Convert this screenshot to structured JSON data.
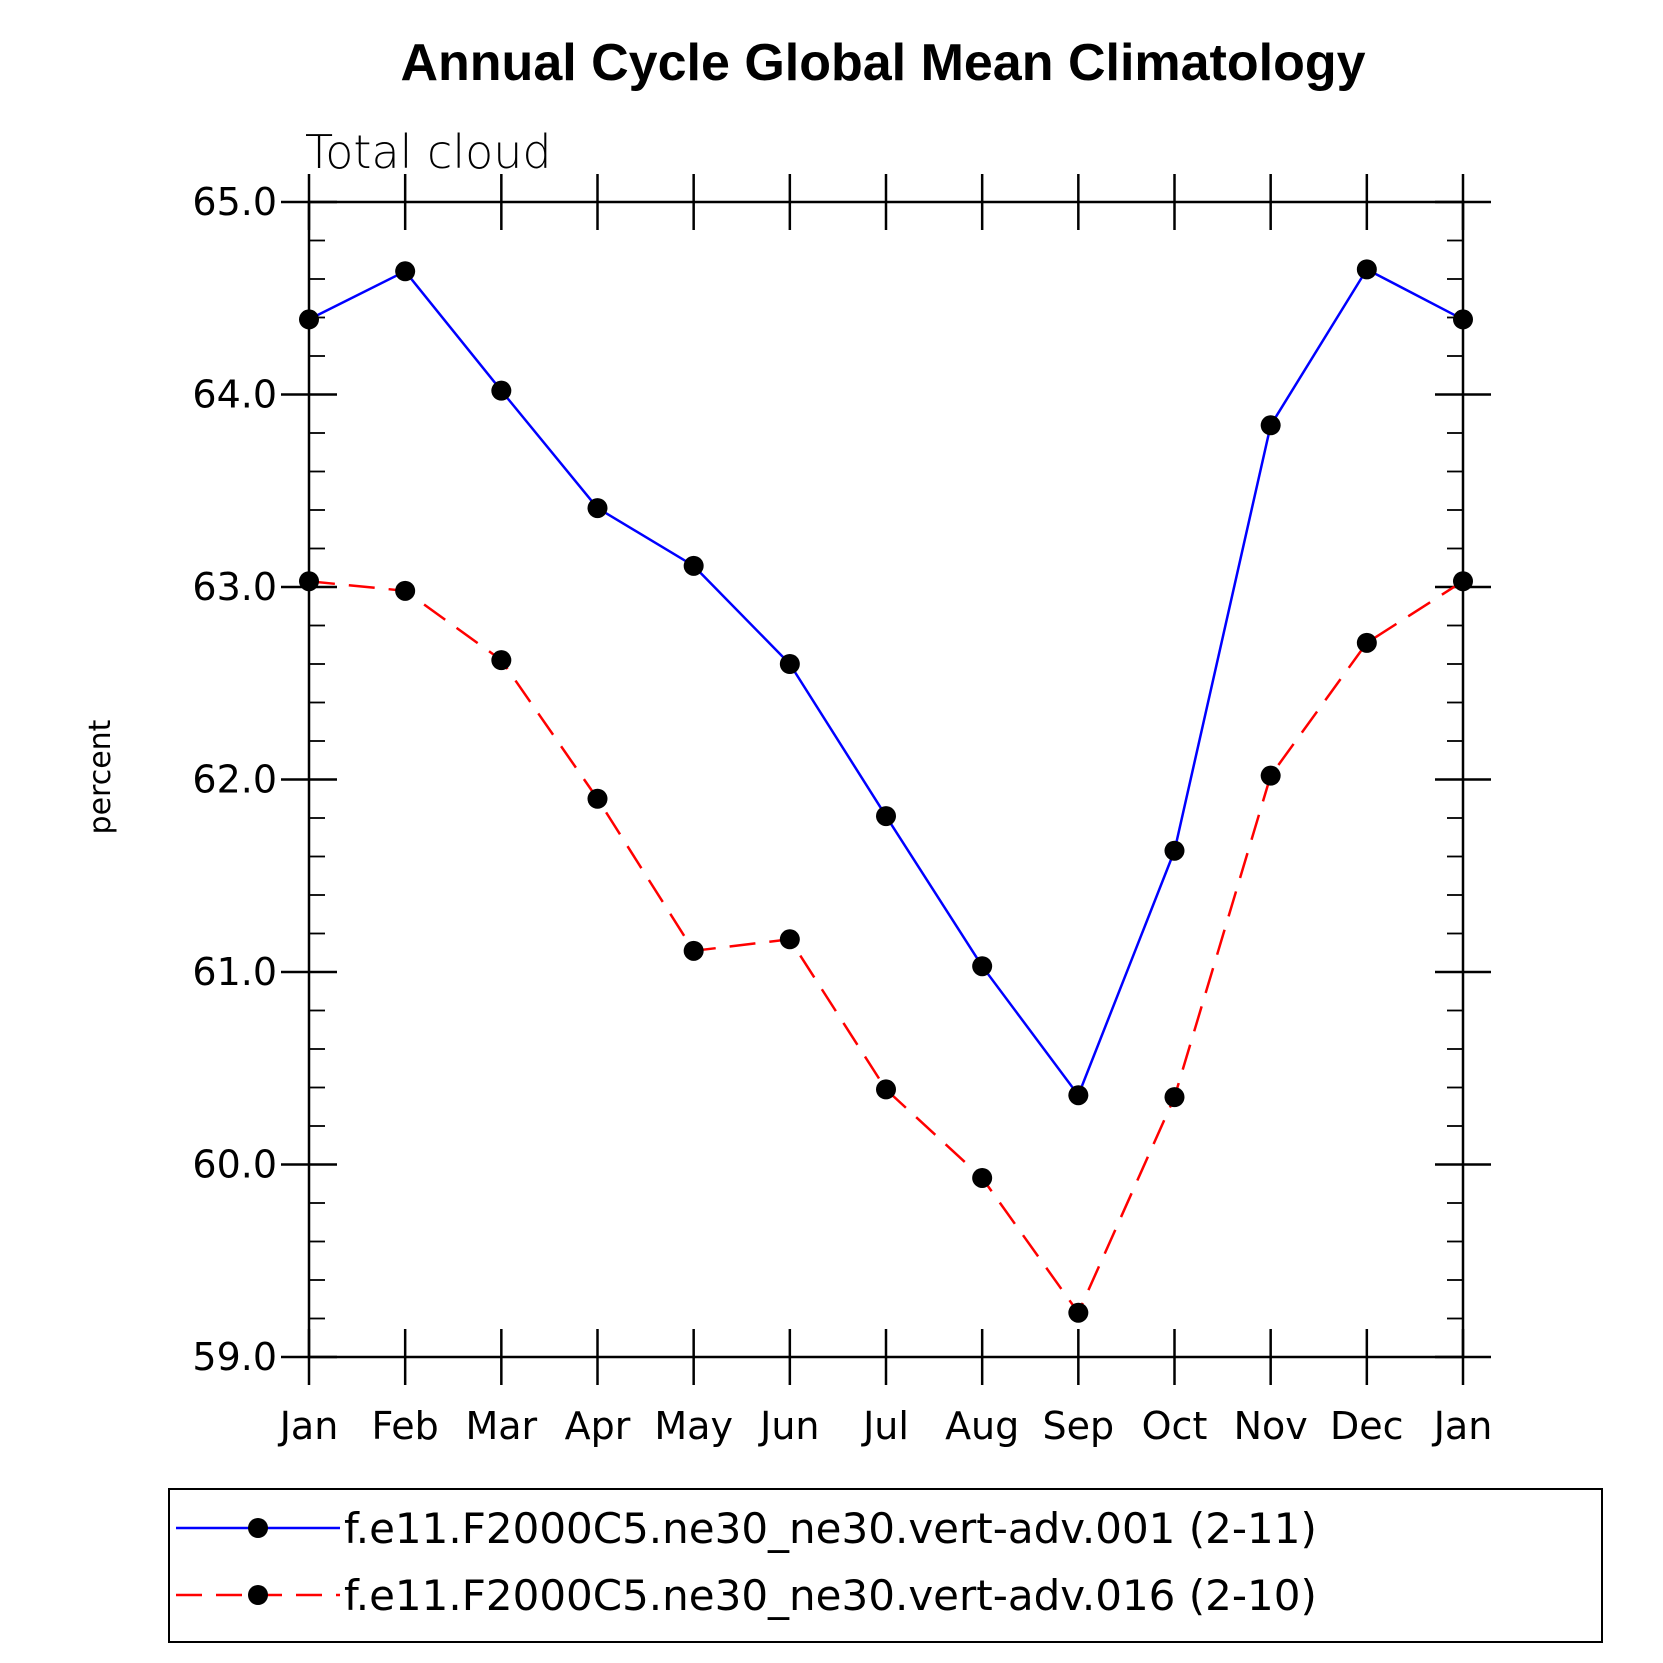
{
  "chart_data": {
    "type": "line",
    "title": "Annual Cycle Global Mean Climatology",
    "subtitle": "Total cloud",
    "ylabel": "percent",
    "xlabel": "",
    "ylim": [
      59.0,
      65.0
    ],
    "yticks": [
      "59.0",
      "60.0",
      "61.0",
      "62.0",
      "63.0",
      "64.0",
      "65.0"
    ],
    "categories": [
      "Jan",
      "Feb",
      "Mar",
      "Apr",
      "May",
      "Jun",
      "Jul",
      "Aug",
      "Sep",
      "Oct",
      "Nov",
      "Dec",
      "Jan"
    ],
    "series": [
      {
        "name": "f.e11.F2000C5.ne30_ne30.vert-adv.001 (2-11)",
        "color": "#0000ff",
        "dash": "solid",
        "values": [
          64.39,
          64.64,
          64.02,
          63.41,
          63.11,
          62.6,
          61.81,
          61.03,
          60.36,
          61.63,
          63.84,
          64.65,
          64.39
        ]
      },
      {
        "name": "f.e11.F2000C5.ne30_ne30.vert-adv.016 (2-10)",
        "color": "#ff0000",
        "dash": "dashed",
        "values": [
          63.03,
          62.98,
          62.62,
          61.9,
          61.11,
          61.17,
          60.39,
          59.93,
          59.23,
          60.35,
          62.02,
          62.71,
          63.03
        ]
      }
    ],
    "legend_position": "bottom",
    "grid": false
  }
}
